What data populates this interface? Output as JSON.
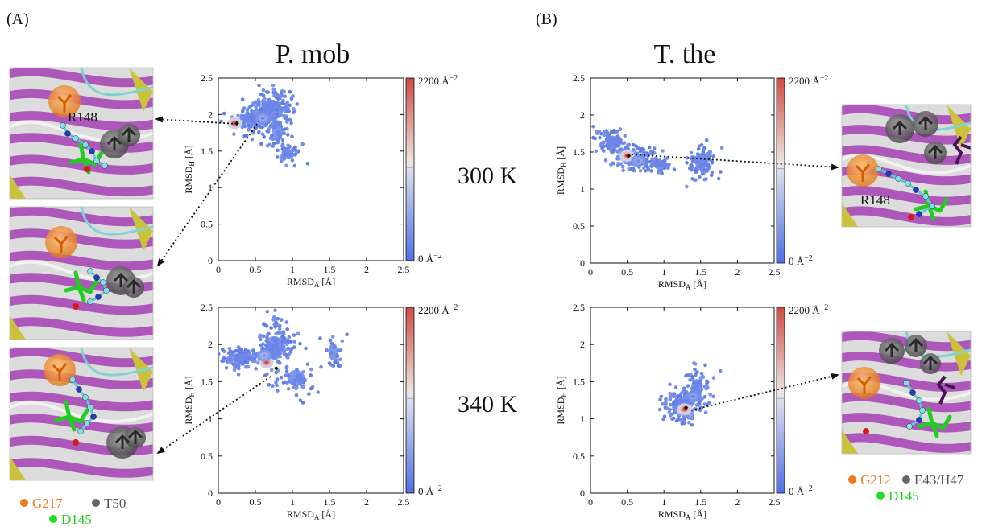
{
  "panels": {
    "A": "(A)",
    "B": "(B)"
  },
  "columns": {
    "left": "P. mob",
    "right": "T. the"
  },
  "rows": {
    "top": "300 K",
    "bottom": "340 K"
  },
  "axes": {
    "xlabel_main": "RMSD",
    "xlabel_sub": "A",
    "xlabel_unit": " [Å]",
    "ylabel_main": "RMSD",
    "ylabel_sub": "H",
    "ylabel_unit": " [Å]",
    "ticks": [
      "0",
      "0.5",
      "1",
      "1.5",
      "2",
      "2.5"
    ],
    "xlim": [
      0,
      2.5
    ],
    "ylim": [
      0,
      2.5
    ]
  },
  "colorbar": {
    "max_label": "2200 Å",
    "min_label": "0 Å",
    "exponent": "−2",
    "colors": [
      "#4f6fe6",
      "#dfe3ec",
      "#e9c9ba",
      "#cf4a45"
    ]
  },
  "structures": {
    "left_label": "R148",
    "right_label": "R148"
  },
  "legend_left": {
    "items": [
      {
        "label": "G217",
        "color": "#f07a1a"
      },
      {
        "label": "T50",
        "color": "#666666"
      },
      {
        "label": "D145",
        "color": "#22dd22"
      }
    ]
  },
  "legend_right": {
    "items": [
      {
        "label": "G212",
        "color": "#f07a1a"
      },
      {
        "label": "E43/H47",
        "color": "#666666"
      },
      {
        "label": "D145",
        "color": "#22dd22"
      }
    ]
  },
  "chart_data": [
    {
      "type": "heatmap",
      "id": "pmob-300",
      "title": "",
      "xlabel": "RMSD_A [Å]",
      "ylabel": "RMSD_H [Å]",
      "xlim": [
        0,
        2.5
      ],
      "ylim": [
        0,
        2.5
      ],
      "colorbar_range": [
        0,
        2200
      ],
      "clusters": [
        {
          "cx": 0.45,
          "cy": 1.95,
          "sx": 0.13,
          "sy": 0.08,
          "n": 160
        },
        {
          "cx": 0.72,
          "cy": 2.08,
          "sx": 0.15,
          "sy": 0.12,
          "n": 140
        },
        {
          "cx": 0.8,
          "cy": 1.78,
          "sx": 0.08,
          "sy": 0.16,
          "n": 70
        },
        {
          "cx": 0.95,
          "cy": 1.45,
          "sx": 0.08,
          "sy": 0.07,
          "n": 45
        }
      ],
      "hot": [
        {
          "x": 0.22,
          "y": 1.88,
          "level": 1.0
        },
        {
          "x": 0.6,
          "y": 1.95,
          "level": 0.35
        }
      ],
      "marker": {
        "x": 0.25,
        "y": 1.88
      }
    },
    {
      "type": "heatmap",
      "id": "tthe-300",
      "title": "",
      "xlabel": "RMSD_A [Å]",
      "ylabel": "RMSD_H [Å]",
      "xlim": [
        0,
        2.5
      ],
      "ylim": [
        0,
        2.5
      ],
      "colorbar_range": [
        0,
        2200
      ],
      "clusters": [
        {
          "cx": 0.3,
          "cy": 1.65,
          "sx": 0.1,
          "sy": 0.08,
          "n": 110
        },
        {
          "cx": 0.6,
          "cy": 1.42,
          "sx": 0.14,
          "sy": 0.08,
          "n": 150
        },
        {
          "cx": 0.95,
          "cy": 1.32,
          "sx": 0.1,
          "sy": 0.06,
          "n": 40
        },
        {
          "cx": 1.5,
          "cy": 1.38,
          "sx": 0.09,
          "sy": 0.12,
          "n": 90
        }
      ],
      "hot": [
        {
          "x": 0.5,
          "y": 1.45,
          "level": 1.0
        },
        {
          "x": 0.65,
          "y": 1.38,
          "level": 0.35
        }
      ],
      "marker": {
        "x": 0.52,
        "y": 1.45
      }
    },
    {
      "type": "heatmap",
      "id": "pmob-340",
      "title": "",
      "xlabel": "RMSD_A [Å]",
      "ylabel": "RMSD_H [Å]",
      "xlim": [
        0,
        2.5
      ],
      "ylim": [
        0,
        2.5
      ],
      "colorbar_range": [
        0,
        2200
      ],
      "clusters": [
        {
          "cx": 0.3,
          "cy": 1.82,
          "sx": 0.15,
          "sy": 0.07,
          "n": 130
        },
        {
          "cx": 0.75,
          "cy": 1.95,
          "sx": 0.13,
          "sy": 0.18,
          "n": 170
        },
        {
          "cx": 1.05,
          "cy": 1.55,
          "sx": 0.13,
          "sy": 0.12,
          "n": 45
        },
        {
          "cx": 1.55,
          "cy": 1.9,
          "sx": 0.07,
          "sy": 0.13,
          "n": 25
        }
      ],
      "hot": [
        {
          "x": 0.65,
          "y": 1.76,
          "level": 1.0
        },
        {
          "x": 0.62,
          "y": 1.85,
          "level": 0.4
        }
      ],
      "marker": {
        "x": 0.78,
        "y": 1.68
      }
    },
    {
      "type": "heatmap",
      "id": "tthe-340",
      "title": "",
      "xlabel": "RMSD_A [Å]",
      "ylabel": "RMSD_H [Å]",
      "xlim": [
        0,
        2.5
      ],
      "ylim": [
        0,
        2.5
      ],
      "colorbar_range": [
        0,
        2200
      ],
      "clusters": [
        {
          "cx": 1.25,
          "cy": 1.18,
          "sx": 0.12,
          "sy": 0.1,
          "n": 170
        },
        {
          "cx": 1.45,
          "cy": 1.42,
          "sx": 0.09,
          "sy": 0.13,
          "n": 80
        }
      ],
      "hot": [
        {
          "x": 1.28,
          "y": 1.13,
          "level": 1.0
        },
        {
          "x": 1.4,
          "y": 1.3,
          "level": 0.3
        }
      ],
      "marker": {
        "x": 1.3,
        "y": 1.15
      }
    }
  ]
}
